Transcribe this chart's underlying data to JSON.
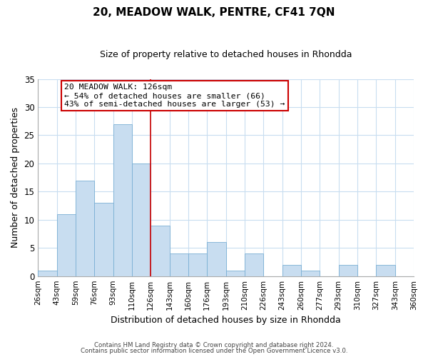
{
  "title": "20, MEADOW WALK, PENTRE, CF41 7QN",
  "subtitle": "Size of property relative to detached houses in Rhondda",
  "xlabel": "Distribution of detached houses by size in Rhondda",
  "ylabel": "Number of detached properties",
  "bar_labels": [
    "26sqm",
    "43sqm",
    "59sqm",
    "76sqm",
    "93sqm",
    "110sqm",
    "126sqm",
    "143sqm",
    "160sqm",
    "176sqm",
    "193sqm",
    "210sqm",
    "226sqm",
    "243sqm",
    "260sqm",
    "277sqm",
    "293sqm",
    "310sqm",
    "327sqm",
    "343sqm",
    "360sqm"
  ],
  "bar_values": [
    1,
    11,
    17,
    13,
    27,
    20,
    9,
    4,
    4,
    6,
    1,
    4,
    0,
    2,
    1,
    0,
    2,
    0,
    2,
    0
  ],
  "highlight_line_color": "#cc0000",
  "bar_color": "#c8ddf0",
  "bar_edge_color": "#7aafd4",
  "ylim": [
    0,
    35
  ],
  "yticks": [
    0,
    5,
    10,
    15,
    20,
    25,
    30,
    35
  ],
  "annotation_title": "20 MEADOW WALK: 126sqm",
  "annotation_line1": "← 54% of detached houses are smaller (66)",
  "annotation_line2": "43% of semi-detached houses are larger (53) →",
  "footer1": "Contains HM Land Registry data © Crown copyright and database right 2024.",
  "footer2": "Contains public sector information licensed under the Open Government Licence v3.0.",
  "background_color": "#ffffff",
  "grid_color": "#c8ddf0"
}
